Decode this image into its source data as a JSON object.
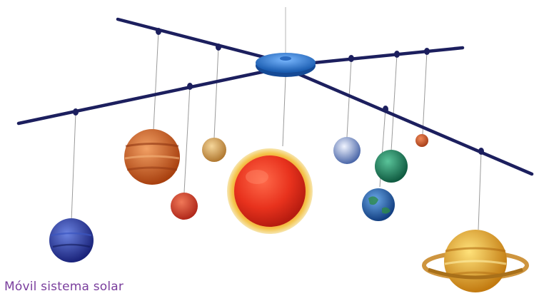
{
  "caption": "Móvil sistema solar",
  "colors": {
    "rod": "#1c1f5e",
    "hub": "#2f7fd6",
    "string": "#9a9a9a",
    "caption": "#7a3e9d",
    "sun": "#e8321d",
    "sun_glow": "#f4c44a"
  },
  "objects": [
    {
      "name": "sun",
      "color": "#e8321d"
    },
    {
      "name": "mercury",
      "color": "#c8552a"
    },
    {
      "name": "venus",
      "color": "#d4a150"
    },
    {
      "name": "earth",
      "color": "#2a6ab0"
    },
    {
      "name": "mars",
      "color": "#cf4a2a"
    },
    {
      "name": "jupiter",
      "color": "#c85a1e"
    },
    {
      "name": "saturn",
      "color": "#e0a020"
    },
    {
      "name": "uranus",
      "color": "#1f7a5a"
    },
    {
      "name": "neptune",
      "color": "#2a3a9a"
    },
    {
      "name": "pluto",
      "color": "#6a86b8"
    }
  ]
}
